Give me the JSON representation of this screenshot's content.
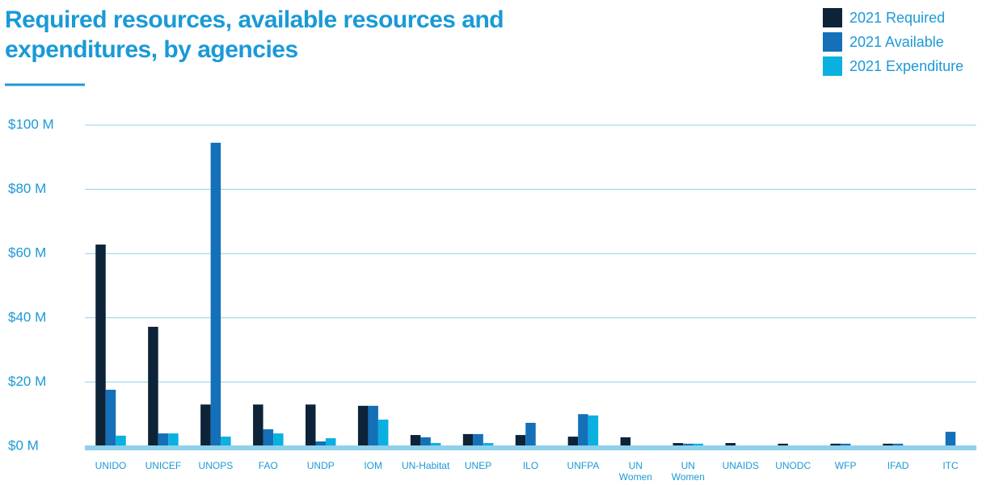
{
  "chart_data": {
    "type": "bar",
    "title": "Required resources, available resources and expenditures, by agencies",
    "categories": [
      "UNIDO",
      "UNICEF",
      "UNOPS",
      "FAO",
      "UNDP",
      "IOM",
      "UN-Habitat",
      "UNEP",
      "ILO",
      "UNFPA",
      "UN\nWomen",
      "UN\nWomen",
      "UNAIDS",
      "UNODC",
      "WFP",
      "IFAD",
      "ITC"
    ],
    "series": [
      {
        "name": "2021 Required",
        "color": "#0d2338",
        "values": [
          62.8,
          37.2,
          13,
          13,
          13,
          12.6,
          3.5,
          3.8,
          3.5,
          3,
          2.8,
          1,
          1,
          0.8,
          0.8,
          0.8,
          0
        ]
      },
      {
        "name": "2021 Available",
        "color": "#1470b8",
        "values": [
          17.6,
          4,
          94.5,
          5.3,
          1.5,
          12.6,
          2.8,
          3.8,
          7.3,
          10,
          0,
          0.8,
          0,
          0,
          0.8,
          0.8,
          4.5
        ]
      },
      {
        "name": "2021 Expenditure",
        "color": "#0ab0e0",
        "values": [
          3.3,
          4,
          3,
          4,
          2.5,
          8.3,
          1,
          1,
          0,
          9.6,
          0,
          0.8,
          0,
          0,
          0,
          0,
          0
        ]
      }
    ],
    "ylim": [
      0,
      100
    ],
    "yticks": [
      {
        "value": 0,
        "label": "$0 M"
      },
      {
        "value": 20,
        "label": "$20 M"
      },
      {
        "value": 40,
        "label": "$40 M"
      },
      {
        "value": 60,
        "label": "$60 M"
      },
      {
        "value": 80,
        "label": "$80 M"
      },
      {
        "value": 100,
        "label": "$100 M"
      }
    ],
    "grid": true,
    "legend": "top-right"
  }
}
